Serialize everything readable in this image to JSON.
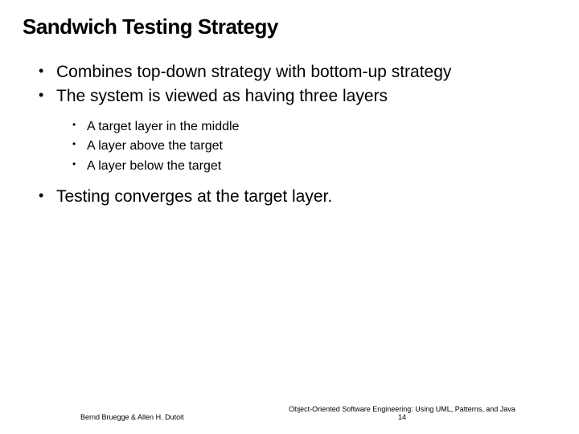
{
  "title": "Sandwich Testing Strategy",
  "bullets": {
    "b1": "Combines top-down strategy with bottom-up strategy",
    "b2": "The system is viewed as having three layers",
    "b2_sub": {
      "s1": "A target layer in the middle",
      "s2": "A layer above the target",
      "s3": "A layer below the target"
    },
    "b3": "Testing converges at the target layer."
  },
  "footer": {
    "authors": "Bernd Bruegge & Allen H. Dutoit",
    "book": "Object-Oriented Software Engineering: Using UML, Patterns, and Java",
    "page": "14"
  },
  "style": {
    "background_color": "#ffffff",
    "text_color": "#000000",
    "title_fontsize": 26,
    "body_fontsize": 21,
    "sub_fontsize": 16,
    "footer_fontsize": 9
  }
}
